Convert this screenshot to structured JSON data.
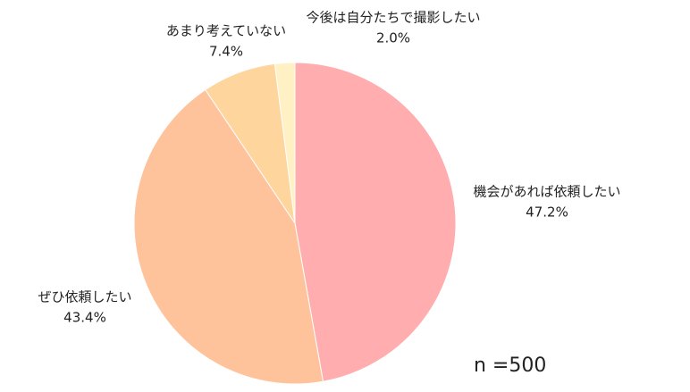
{
  "chart_data": {
    "type": "pie",
    "categories": [
      "機会があれば依頼したい",
      "ぜひ依頼したい",
      "あまり考えていない",
      "今後は自分たちで撮影したい"
    ],
    "values": [
      47.2,
      43.4,
      7.4,
      2.0
    ],
    "value_labels": [
      "47.2%",
      "43.4%",
      "7.4%",
      "2.0%"
    ],
    "colors": [
      "#ffadae",
      "#ffc39c",
      "#fed59c",
      "#fff1c4"
    ],
    "annotation": "n =500"
  }
}
